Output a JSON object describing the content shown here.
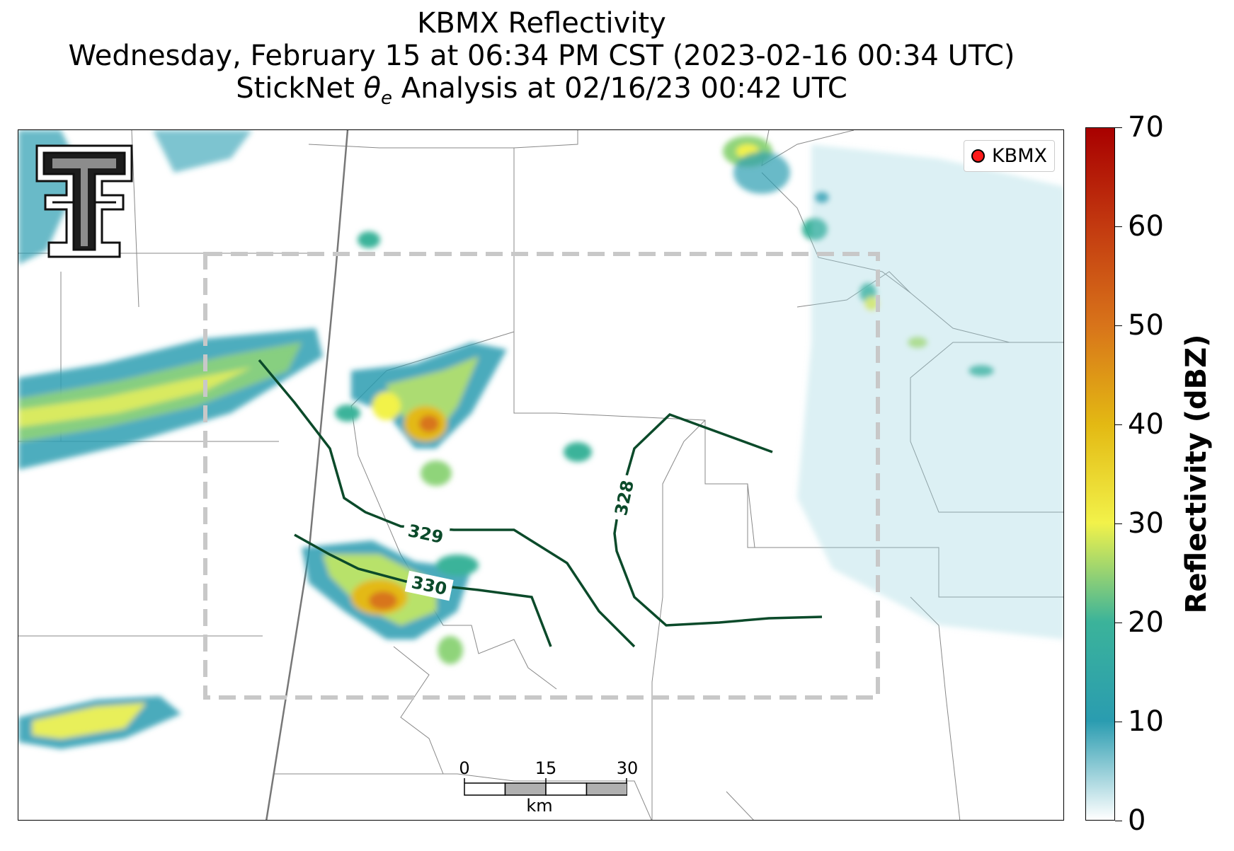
{
  "title": {
    "line1": "KBMX Reflectivity",
    "line2": "Wednesday, February 15 at 06:34 PM CST (2023-02-16 00:34 UTC)",
    "line3_prefix": "StickNet ",
    "line3_symbol": "θ",
    "line3_subscript": "e",
    "line3_suffix": " Analysis at 02/16/23 00:42 UTC"
  },
  "legend": {
    "label": "KBMX",
    "marker_color": "#ff1a1a"
  },
  "scalebar": {
    "ticks": [
      "0",
      "15",
      "30"
    ],
    "unit": "km"
  },
  "contours": [
    {
      "label": "328",
      "color": "#0b4a2a"
    },
    {
      "label": "329",
      "color": "#0b4a2a"
    },
    {
      "label": "330",
      "color": "#0b4a2a"
    }
  ],
  "colorbar": {
    "label": "Reflectivity (dBZ)",
    "ticks": [
      "0",
      "10",
      "20",
      "30",
      "40",
      "50",
      "60",
      "70"
    ],
    "range": [
      0,
      70
    ],
    "stops": [
      "#ffffff",
      "#2a9cb0",
      "#3bb39a",
      "#f2f24a",
      "#e3b913",
      "#d8741a",
      "#c33a10",
      "#a80000"
    ]
  },
  "logo": {
    "icon": "double-t-logo-icon"
  }
}
